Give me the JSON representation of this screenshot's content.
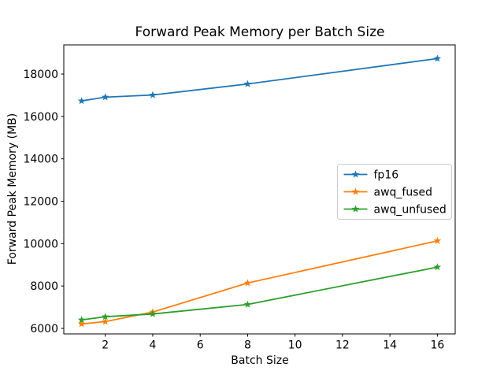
{
  "chart_data": {
    "type": "line",
    "title": "Forward Peak Memory per Batch Size",
    "xlabel": "Batch Size",
    "ylabel": "Forward Peak Memory (MB)",
    "x": [
      1,
      2,
      4,
      8,
      16
    ],
    "series": [
      {
        "name": "fp16",
        "color": "#1f77b4",
        "values": [
          16730,
          16910,
          17010,
          17530,
          18730
        ]
      },
      {
        "name": "awq_fused",
        "color": "#ff7f0e",
        "values": [
          6210,
          6320,
          6770,
          8140,
          10130
        ]
      },
      {
        "name": "awq_unfused",
        "color": "#2ca02c",
        "values": [
          6400,
          6550,
          6680,
          7130,
          8890
        ]
      }
    ],
    "xlim": [
      0.25,
      16.75
    ],
    "ylim": [
      5740,
      19375
    ],
    "xticks": [
      2,
      4,
      6,
      8,
      10,
      12,
      14,
      16
    ],
    "yticks": [
      6000,
      8000,
      10000,
      12000,
      14000,
      16000,
      18000
    ],
    "marker": "star",
    "grid": false,
    "legend_position": "center right",
    "background_color": "#ffffff",
    "spine_color": "#000000",
    "legend_border_color": "#cccccc"
  }
}
